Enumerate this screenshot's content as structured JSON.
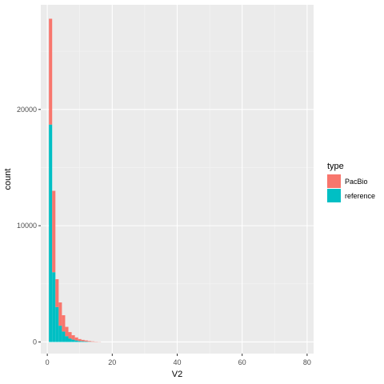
{
  "chart_data": {
    "type": "bar",
    "stacked": true,
    "xlabel": "V2",
    "ylabel": "count",
    "xlim": [
      -2,
      82
    ],
    "ylim": [
      -1000,
      29000
    ],
    "x_ticks": [
      0,
      20,
      40,
      60,
      80
    ],
    "y_ticks": [
      0,
      10000,
      20000
    ],
    "bin_width": 1,
    "grid": true,
    "legend": {
      "title": "type",
      "position": "right"
    },
    "x": [
      1,
      2,
      3,
      4,
      5,
      6,
      7,
      8,
      9,
      10,
      11,
      12,
      13,
      14,
      15,
      16
    ],
    "series": [
      {
        "name": "PacBio",
        "color": "#F8766D",
        "values": [
          9100,
          7000,
          2400,
          2000,
          1400,
          800,
          550,
          380,
          260,
          170,
          120,
          90,
          60,
          40,
          25,
          15
        ]
      },
      {
        "name": "reference",
        "color": "#00BFC4",
        "values": [
          18700,
          6000,
          3000,
          1400,
          900,
          500,
          300,
          200,
          130,
          80,
          60,
          40,
          20,
          10,
          5,
          3
        ]
      }
    ]
  }
}
